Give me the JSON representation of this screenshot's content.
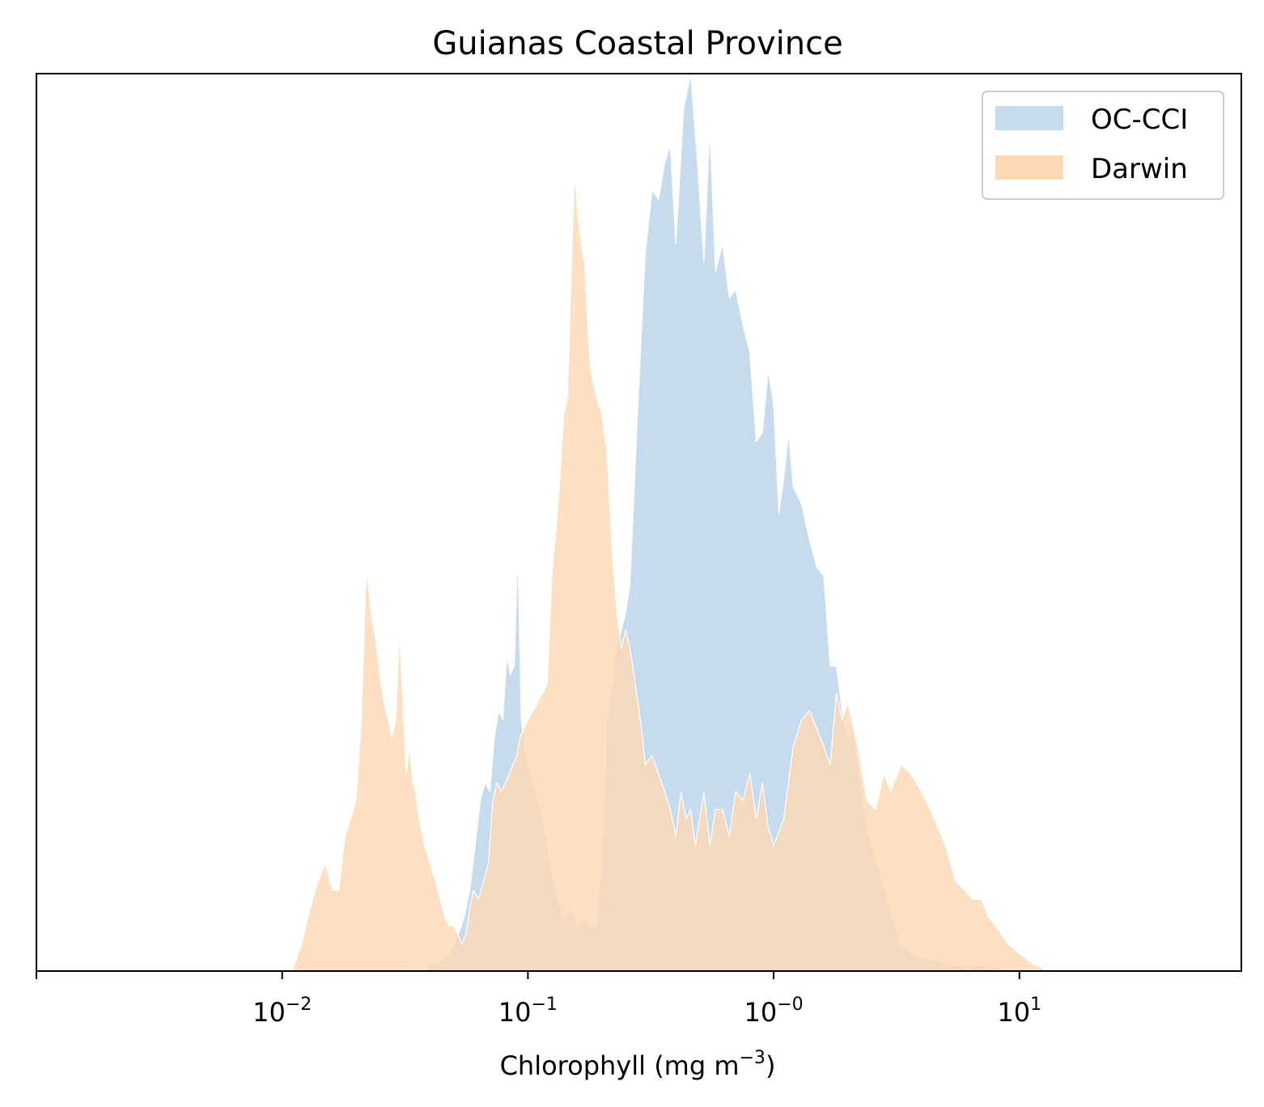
{
  "chart_data": {
    "type": "area",
    "title": "Guianas Coastal Province",
    "xlabel": "Chlorophyll  (mg m",
    "xlabel_sup": "−3",
    "xlabel_tail": ")",
    "x_scale": "log",
    "xlim": [
      0.001,
      80
    ],
    "ylim": [
      0,
      1.0
    ],
    "y_ticks_visible": false,
    "grid": false,
    "legend_position": "top-right",
    "x_ticks": [
      {
        "value": 0.01,
        "base": "10",
        "exp": "−2"
      },
      {
        "value": 0.1,
        "base": "10",
        "exp": "−1"
      },
      {
        "value": 1,
        "base": "10",
        "exp": "−0"
      },
      {
        "value": 10,
        "base": "10",
        "exp": "1"
      }
    ],
    "series": [
      {
        "name": "OC-CCI",
        "color": "#c6dbed",
        "points": [
          [
            0.033,
            0.0
          ],
          [
            0.038,
            0.003
          ],
          [
            0.044,
            0.01
          ],
          [
            0.048,
            0.02
          ],
          [
            0.052,
            0.04
          ],
          [
            0.055,
            0.06
          ],
          [
            0.058,
            0.09
          ],
          [
            0.061,
            0.14
          ],
          [
            0.064,
            0.19
          ],
          [
            0.067,
            0.21
          ],
          [
            0.07,
            0.2
          ],
          [
            0.073,
            0.26
          ],
          [
            0.076,
            0.29
          ],
          [
            0.079,
            0.28
          ],
          [
            0.082,
            0.35
          ],
          [
            0.085,
            0.33
          ],
          [
            0.088,
            0.34
          ],
          [
            0.091,
            0.47
          ],
          [
            0.094,
            0.28
          ],
          [
            0.097,
            0.25
          ],
          [
            0.1,
            0.23
          ],
          [
            0.105,
            0.21
          ],
          [
            0.11,
            0.19
          ],
          [
            0.115,
            0.17
          ],
          [
            0.12,
            0.14
          ],
          [
            0.125,
            0.11
          ],
          [
            0.13,
            0.09
          ],
          [
            0.135,
            0.07
          ],
          [
            0.14,
            0.06
          ],
          [
            0.15,
            0.07
          ],
          [
            0.16,
            0.05
          ],
          [
            0.17,
            0.06
          ],
          [
            0.18,
            0.05
          ],
          [
            0.19,
            0.05
          ],
          [
            0.2,
            0.12
          ],
          [
            0.21,
            0.28
          ],
          [
            0.22,
            0.32
          ],
          [
            0.23,
            0.36
          ],
          [
            0.24,
            0.38
          ],
          [
            0.25,
            0.4
          ],
          [
            0.26,
            0.43
          ],
          [
            0.28,
            0.63
          ],
          [
            0.3,
            0.8
          ],
          [
            0.32,
            0.87
          ],
          [
            0.34,
            0.86
          ],
          [
            0.36,
            0.9
          ],
          [
            0.38,
            0.92
          ],
          [
            0.4,
            0.81
          ],
          [
            0.43,
            0.96
          ],
          [
            0.46,
            1.0
          ],
          [
            0.49,
            0.9
          ],
          [
            0.52,
            0.79
          ],
          [
            0.55,
            0.94
          ],
          [
            0.58,
            0.78
          ],
          [
            0.62,
            0.81
          ],
          [
            0.66,
            0.75
          ],
          [
            0.7,
            0.76
          ],
          [
            0.75,
            0.72
          ],
          [
            0.8,
            0.69
          ],
          [
            0.85,
            0.59
          ],
          [
            0.9,
            0.6
          ],
          [
            0.95,
            0.67
          ],
          [
            1.0,
            0.63
          ],
          [
            1.05,
            0.51
          ],
          [
            1.1,
            0.55
          ],
          [
            1.15,
            0.6
          ],
          [
            1.2,
            0.54
          ],
          [
            1.3,
            0.52
          ],
          [
            1.4,
            0.48
          ],
          [
            1.5,
            0.45
          ],
          [
            1.6,
            0.44
          ],
          [
            1.7,
            0.34
          ],
          [
            1.8,
            0.34
          ],
          [
            1.9,
            0.29
          ],
          [
            2.0,
            0.26
          ],
          [
            2.1,
            0.27
          ],
          [
            2.2,
            0.23
          ],
          [
            2.3,
            0.2
          ],
          [
            2.4,
            0.16
          ],
          [
            2.5,
            0.14
          ],
          [
            2.7,
            0.11
          ],
          [
            2.9,
            0.08
          ],
          [
            3.1,
            0.05
          ],
          [
            3.3,
            0.03
          ],
          [
            3.6,
            0.02
          ],
          [
            4.0,
            0.015
          ],
          [
            4.5,
            0.012
          ],
          [
            5.0,
            0.008
          ],
          [
            6.0,
            0.005
          ],
          [
            7.0,
            0.006
          ],
          [
            8.0,
            0.004
          ],
          [
            9.0,
            0.002
          ],
          [
            10.0,
            0.0
          ]
        ]
      },
      {
        "name": "Darwin",
        "color": "#fdd8b5",
        "points": [
          [
            0.011,
            0.0
          ],
          [
            0.012,
            0.03
          ],
          [
            0.013,
            0.07
          ],
          [
            0.014,
            0.1
          ],
          [
            0.015,
            0.12
          ],
          [
            0.016,
            0.09
          ],
          [
            0.017,
            0.09
          ],
          [
            0.018,
            0.15
          ],
          [
            0.019,
            0.17
          ],
          [
            0.02,
            0.19
          ],
          [
            0.021,
            0.28
          ],
          [
            0.022,
            0.45
          ],
          [
            0.023,
            0.4
          ],
          [
            0.024,
            0.37
          ],
          [
            0.025,
            0.33
          ],
          [
            0.026,
            0.3
          ],
          [
            0.027,
            0.28
          ],
          [
            0.028,
            0.26
          ],
          [
            0.029,
            0.28
          ],
          [
            0.03,
            0.38
          ],
          [
            0.031,
            0.3
          ],
          [
            0.032,
            0.22
          ],
          [
            0.033,
            0.25
          ],
          [
            0.034,
            0.21
          ],
          [
            0.035,
            0.2
          ],
          [
            0.036,
            0.17
          ],
          [
            0.038,
            0.14
          ],
          [
            0.04,
            0.12
          ],
          [
            0.042,
            0.1
          ],
          [
            0.044,
            0.08
          ],
          [
            0.046,
            0.06
          ],
          [
            0.048,
            0.05
          ],
          [
            0.05,
            0.05
          ],
          [
            0.052,
            0.04
          ],
          [
            0.054,
            0.03
          ],
          [
            0.056,
            0.04
          ],
          [
            0.058,
            0.07
          ],
          [
            0.06,
            0.09
          ],
          [
            0.063,
            0.08
          ],
          [
            0.066,
            0.1
          ],
          [
            0.069,
            0.12
          ],
          [
            0.072,
            0.19
          ],
          [
            0.075,
            0.21
          ],
          [
            0.078,
            0.2
          ],
          [
            0.081,
            0.21
          ],
          [
            0.084,
            0.22
          ],
          [
            0.087,
            0.23
          ],
          [
            0.09,
            0.24
          ],
          [
            0.093,
            0.26
          ],
          [
            0.096,
            0.27
          ],
          [
            0.1,
            0.28
          ],
          [
            0.105,
            0.29
          ],
          [
            0.11,
            0.3
          ],
          [
            0.115,
            0.31
          ],
          [
            0.12,
            0.32
          ],
          [
            0.125,
            0.44
          ],
          [
            0.13,
            0.49
          ],
          [
            0.135,
            0.55
          ],
          [
            0.14,
            0.62
          ],
          [
            0.145,
            0.64
          ],
          [
            0.15,
            0.78
          ],
          [
            0.155,
            0.89
          ],
          [
            0.16,
            0.84
          ],
          [
            0.165,
            0.81
          ],
          [
            0.17,
            0.79
          ],
          [
            0.175,
            0.72
          ],
          [
            0.18,
            0.67
          ],
          [
            0.19,
            0.64
          ],
          [
            0.2,
            0.62
          ],
          [
            0.21,
            0.58
          ],
          [
            0.22,
            0.47
          ],
          [
            0.23,
            0.4
          ],
          [
            0.24,
            0.36
          ],
          [
            0.25,
            0.38
          ],
          [
            0.26,
            0.36
          ],
          [
            0.27,
            0.33
          ],
          [
            0.28,
            0.3
          ],
          [
            0.29,
            0.27
          ],
          [
            0.3,
            0.23
          ],
          [
            0.32,
            0.24
          ],
          [
            0.34,
            0.22
          ],
          [
            0.36,
            0.2
          ],
          [
            0.38,
            0.18
          ],
          [
            0.4,
            0.15
          ],
          [
            0.42,
            0.2
          ],
          [
            0.44,
            0.17
          ],
          [
            0.46,
            0.18
          ],
          [
            0.48,
            0.14
          ],
          [
            0.5,
            0.17
          ],
          [
            0.52,
            0.2
          ],
          [
            0.55,
            0.14
          ],
          [
            0.58,
            0.18
          ],
          [
            0.62,
            0.18
          ],
          [
            0.66,
            0.15
          ],
          [
            0.7,
            0.2
          ],
          [
            0.75,
            0.19
          ],
          [
            0.8,
            0.22
          ],
          [
            0.85,
            0.17
          ],
          [
            0.9,
            0.21
          ],
          [
            0.95,
            0.16
          ],
          [
            1.0,
            0.14
          ],
          [
            1.1,
            0.17
          ],
          [
            1.2,
            0.25
          ],
          [
            1.3,
            0.28
          ],
          [
            1.4,
            0.29
          ],
          [
            1.5,
            0.27
          ],
          [
            1.6,
            0.25
          ],
          [
            1.7,
            0.23
          ],
          [
            1.8,
            0.31
          ],
          [
            1.9,
            0.28
          ],
          [
            2.0,
            0.3
          ],
          [
            2.2,
            0.25
          ],
          [
            2.4,
            0.19
          ],
          [
            2.6,
            0.18
          ],
          [
            2.8,
            0.22
          ],
          [
            3.0,
            0.2
          ],
          [
            3.3,
            0.23
          ],
          [
            3.6,
            0.22
          ],
          [
            4.0,
            0.2
          ],
          [
            4.5,
            0.17
          ],
          [
            5.0,
            0.14
          ],
          [
            5.5,
            0.1
          ],
          [
            6.0,
            0.09
          ],
          [
            6.5,
            0.08
          ],
          [
            7.0,
            0.08
          ],
          [
            7.5,
            0.06
          ],
          [
            8.0,
            0.05
          ],
          [
            8.5,
            0.04
          ],
          [
            9.0,
            0.03
          ],
          [
            10.0,
            0.02
          ],
          [
            11.0,
            0.01
          ],
          [
            12.0,
            0.005
          ],
          [
            13.0,
            0.0
          ]
        ]
      }
    ]
  }
}
